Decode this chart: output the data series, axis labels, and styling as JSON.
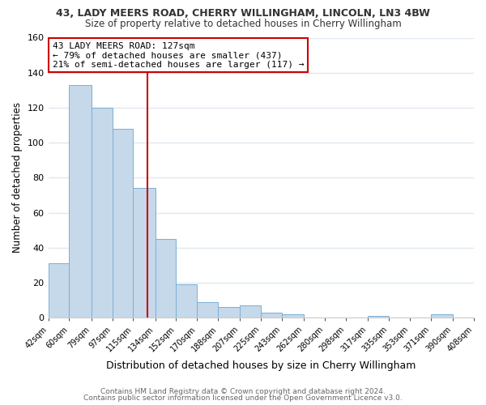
{
  "title_line1": "43, LADY MEERS ROAD, CHERRY WILLINGHAM, LINCOLN, LN3 4BW",
  "title_line2": "Size of property relative to detached houses in Cherry Willingham",
  "xlabel": "Distribution of detached houses by size in Cherry Willingham",
  "ylabel": "Number of detached properties",
  "bar_edges": [
    42,
    60,
    79,
    97,
    115,
    134,
    152,
    170,
    188,
    207,
    225,
    243,
    262,
    280,
    298,
    317,
    335,
    353,
    371,
    390,
    408
  ],
  "bar_heights": [
    31,
    133,
    120,
    108,
    74,
    45,
    19,
    9,
    6,
    7,
    3,
    2,
    0,
    0,
    0,
    1,
    0,
    0,
    2,
    0
  ],
  "bar_color": "#c5d9ea",
  "bar_edgecolor": "#7bafd4",
  "property_line_x": 127,
  "ylim": [
    0,
    160
  ],
  "annotation_line1": "43 LADY MEERS ROAD: 127sqm",
  "annotation_line2": "← 79% of detached houses are smaller (437)",
  "annotation_line3": "21% of semi-detached houses are larger (117) →",
  "annotation_box_color": "#ffffff",
  "annotation_box_edgecolor": "#cc0000",
  "tick_labels": [
    "42sqm",
    "60sqm",
    "79sqm",
    "97sqm",
    "115sqm",
    "134sqm",
    "152sqm",
    "170sqm",
    "188sqm",
    "207sqm",
    "225sqm",
    "243sqm",
    "262sqm",
    "280sqm",
    "298sqm",
    "317sqm",
    "335sqm",
    "353sqm",
    "371sqm",
    "390sqm",
    "408sqm"
  ],
  "footer_line1": "Contains HM Land Registry data © Crown copyright and database right 2024.",
  "footer_line2": "Contains public sector information licensed under the Open Government Licence v3.0.",
  "background_color": "#ffffff",
  "grid_color": "#e0e8f0",
  "line_color": "#cc0000",
  "yticks": [
    0,
    20,
    40,
    60,
    80,
    100,
    120,
    140,
    160
  ]
}
